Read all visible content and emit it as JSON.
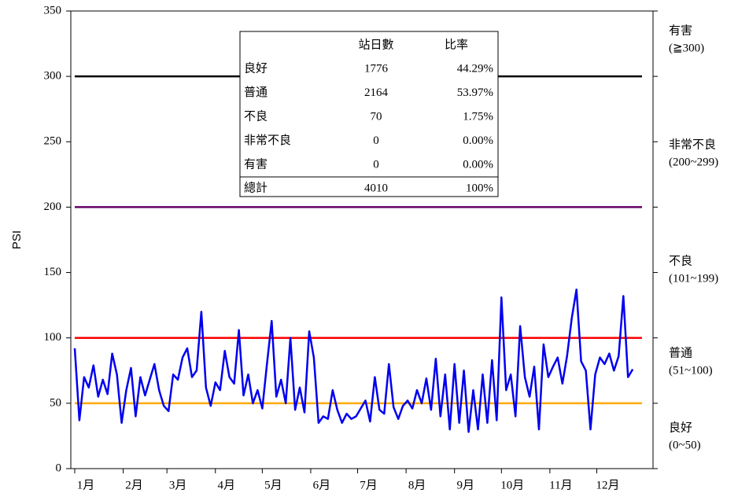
{
  "chart_data": {
    "type": "line",
    "y_label": "PSI",
    "xlim": [
      -1.5,
      371
    ],
    "xticks": [
      {
        "value": 1,
        "label": "1月"
      },
      {
        "value": 32,
        "label": "2月"
      },
      {
        "value": 60,
        "label": "3月"
      },
      {
        "value": 91,
        "label": "4月"
      },
      {
        "value": 121,
        "label": "5月"
      },
      {
        "value": 152,
        "label": "6月"
      },
      {
        "value": 182,
        "label": "7月"
      },
      {
        "value": 213,
        "label": "8月"
      },
      {
        "value": 244,
        "label": "9月"
      },
      {
        "value": 274,
        "label": "10月"
      },
      {
        "value": 305,
        "label": "11月"
      },
      {
        "value": 335,
        "label": "12月"
      }
    ],
    "ylim": [
      0,
      350
    ],
    "yticks": [
      0,
      50,
      100,
      150,
      200,
      250,
      300,
      350
    ],
    "x": [
      1,
      4,
      7,
      10,
      13,
      16,
      19,
      22,
      25,
      28,
      31,
      34,
      37,
      40,
      43,
      46,
      49,
      52,
      55,
      58,
      61,
      64,
      67,
      70,
      73,
      76,
      79,
      82,
      85,
      88,
      91,
      94,
      97,
      100,
      103,
      106,
      109,
      112,
      115,
      118,
      121,
      124,
      127,
      130,
      133,
      136,
      139,
      142,
      145,
      148,
      151,
      154,
      157,
      160,
      163,
      166,
      169,
      172,
      175,
      178,
      181,
      184,
      187,
      190,
      193,
      196,
      199,
      202,
      205,
      208,
      211,
      214,
      217,
      220,
      223,
      226,
      229,
      232,
      235,
      238,
      241,
      244,
      247,
      250,
      253,
      256,
      259,
      262,
      265,
      268,
      271,
      274,
      277,
      280,
      283,
      286,
      289,
      292,
      295,
      298,
      301,
      304,
      307,
      310,
      313,
      316,
      319,
      322,
      325,
      328,
      331,
      334,
      337,
      340,
      343,
      346,
      349,
      352,
      355,
      358
    ],
    "series": [
      {
        "color": "#0000ee",
        "values": [
          92,
          37,
          70,
          62,
          79,
          55,
          68,
          57,
          88,
          72,
          35,
          60,
          77,
          40,
          70,
          56,
          68,
          80,
          60,
          48,
          44,
          72,
          68,
          85,
          92,
          70,
          75,
          120,
          62,
          48,
          66,
          60,
          90,
          70,
          65,
          106,
          56,
          72,
          50,
          60,
          46,
          80,
          113,
          55,
          68,
          50,
          100,
          45,
          62,
          43,
          105,
          85,
          35,
          40,
          38,
          60,
          45,
          35,
          42,
          38,
          40,
          46,
          52,
          36,
          70,
          45,
          42,
          80,
          47,
          38,
          48,
          52,
          46,
          60,
          50,
          69,
          45,
          84,
          40,
          72,
          30,
          80,
          35,
          75,
          28,
          60,
          30,
          72,
          35,
          83,
          37,
          131,
          60,
          72,
          40,
          109,
          70,
          55,
          78,
          30,
          95,
          70,
          78,
          85,
          65,
          86,
          115,
          137,
          82,
          75,
          30,
          72,
          85,
          80,
          88,
          75,
          86,
          132,
          70,
          76
        ]
      }
    ],
    "thresholds": [
      {
        "value": 300,
        "color": "#000000"
      },
      {
        "value": 200,
        "color": "#660066"
      },
      {
        "value": 100,
        "color": "#ff0000"
      },
      {
        "value": 50,
        "color": "#ffaa00"
      }
    ],
    "zones": [
      {
        "name": "有害",
        "range": "(≧300)"
      },
      {
        "name": "非常不良",
        "range": "(200~299)"
      },
      {
        "name": "不良",
        "range": "(101~199)"
      },
      {
        "name": "普通",
        "range": "(51~100)"
      },
      {
        "name": "良好",
        "range": "(0~50)"
      }
    ],
    "table": {
      "columns": [
        "站日數",
        "比率"
      ],
      "rows": [
        [
          "良好",
          "1776",
          "44.29%"
        ],
        [
          "普通",
          "2164",
          "53.97%"
        ],
        [
          "不良",
          "70",
          "1.75%"
        ],
        [
          "非常不良",
          "0",
          "0.00%"
        ],
        [
          "有害",
          "0",
          "0.00%"
        ]
      ],
      "total": [
        "總計",
        "4010",
        "100%"
      ]
    }
  }
}
